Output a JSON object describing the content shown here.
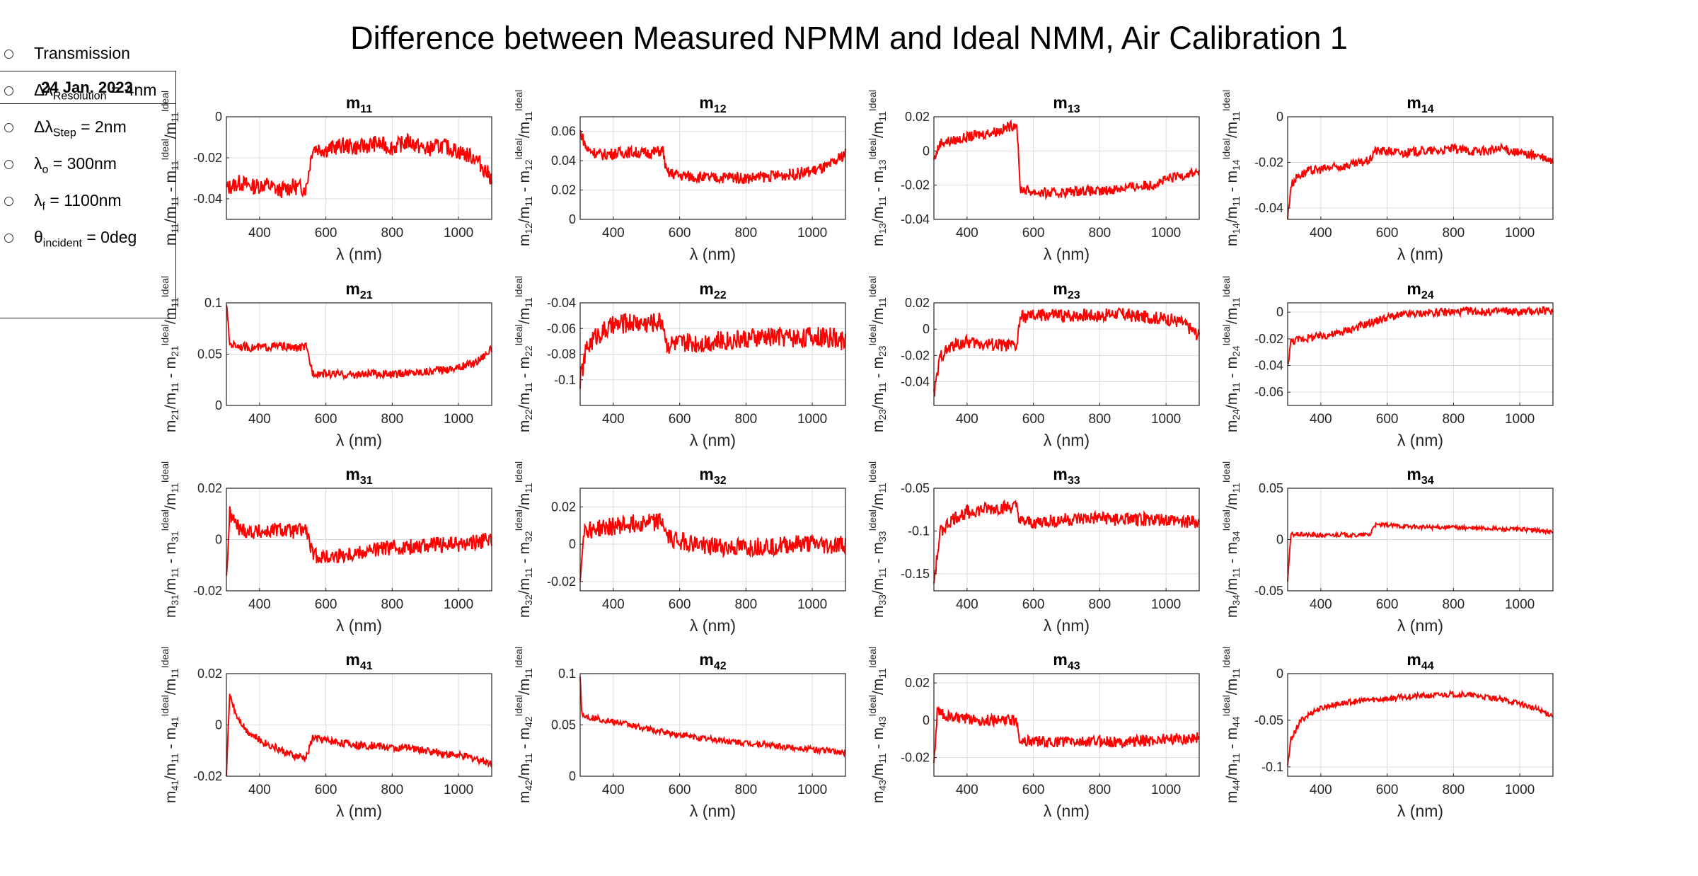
{
  "title": "Difference between Measured NPMM and Ideal NMM,  Air Calibration 1",
  "legend": {
    "date": "24 Jan. 2023",
    "items": [
      {
        "pre": "Transmission",
        "sub": "",
        "post": ""
      },
      {
        "pre": "Δλ",
        "sub": "Resolution",
        "post": " = 4nm"
      },
      {
        "pre": "Δλ",
        "sub": "Step",
        "post": " = 2nm"
      },
      {
        "pre": "λ",
        "sub": "o",
        "post": " = 300nm"
      },
      {
        "pre": "λ",
        "sub": "f",
        "post": " = 1100nm"
      },
      {
        "pre": "θ",
        "sub": "incident",
        "post": " = 0deg"
      }
    ]
  },
  "colors": {
    "line": "#ff0000",
    "grid": "#dcdcdc",
    "axis": "#262626"
  },
  "chart_data": [
    {
      "id": "11",
      "type": "line",
      "title": "m11",
      "xlabel": "λ (nm)",
      "ylabel": "m11/m11 - m11 Ideal/m11 Ideal",
      "xlim": [
        300,
        1100
      ],
      "ylim": [
        -0.05,
        0
      ],
      "yticks": [
        0,
        -0.02,
        -0.04
      ],
      "xticks": [
        400,
        600,
        800,
        1000
      ],
      "x": [
        300,
        340,
        380,
        420,
        460,
        500,
        540,
        560,
        600,
        650,
        700,
        750,
        800,
        850,
        900,
        950,
        1000,
        1050,
        1100
      ],
      "y": [
        -0.035,
        -0.032,
        -0.034,
        -0.033,
        -0.036,
        -0.034,
        -0.035,
        -0.015,
        -0.016,
        -0.014,
        -0.015,
        -0.013,
        -0.015,
        -0.012,
        -0.016,
        -0.014,
        -0.017,
        -0.02,
        -0.03
      ],
      "noise": 0.004
    },
    {
      "id": "12",
      "type": "line",
      "title": "m12",
      "xlabel": "λ (nm)",
      "ylabel": "m12/m11 - m12 Ideal/m11 Ideal",
      "xlim": [
        300,
        1100
      ],
      "ylim": [
        0,
        0.07
      ],
      "yticks": [
        0,
        0.02,
        0.04,
        0.06
      ],
      "xticks": [
        400,
        600,
        800,
        1000
      ],
      "x": [
        300,
        320,
        360,
        400,
        450,
        500,
        550,
        560,
        600,
        650,
        700,
        750,
        800,
        850,
        900,
        950,
        1000,
        1050,
        1100
      ],
      "y": [
        0.06,
        0.048,
        0.044,
        0.045,
        0.046,
        0.045,
        0.047,
        0.032,
        0.03,
        0.029,
        0.028,
        0.029,
        0.028,
        0.029,
        0.03,
        0.031,
        0.033,
        0.036,
        0.045
      ],
      "noise": 0.004
    },
    {
      "id": "13",
      "type": "line",
      "title": "m13",
      "xlabel": "λ (nm)",
      "ylabel": "m13/m11 - m13 Ideal/m11 Ideal",
      "xlim": [
        300,
        1100
      ],
      "ylim": [
        -0.04,
        0.02
      ],
      "yticks": [
        0.02,
        0,
        -0.02,
        -0.04
      ],
      "xticks": [
        400,
        600,
        800,
        1000
      ],
      "x": [
        300,
        320,
        360,
        400,
        450,
        500,
        550,
        560,
        600,
        650,
        700,
        750,
        800,
        850,
        900,
        950,
        1000,
        1050,
        1100
      ],
      "y": [
        -0.005,
        0.005,
        0.006,
        0.008,
        0.01,
        0.012,
        0.016,
        -0.022,
        -0.024,
        -0.025,
        -0.024,
        -0.023,
        -0.024,
        -0.022,
        -0.021,
        -0.02,
        -0.017,
        -0.014,
        -0.012
      ],
      "noise": 0.003
    },
    {
      "id": "14",
      "type": "line",
      "title": "m14",
      "xlabel": "λ (nm)",
      "ylabel": "m14/m11 - m14 Ideal/m11 Ideal",
      "xlim": [
        300,
        1100
      ],
      "ylim": [
        -0.045,
        0
      ],
      "yticks": [
        0,
        -0.02,
        -0.04
      ],
      "xticks": [
        400,
        600,
        800,
        1000
      ],
      "x": [
        300,
        310,
        330,
        360,
        400,
        450,
        500,
        550,
        560,
        600,
        650,
        700,
        750,
        800,
        850,
        900,
        950,
        1000,
        1050,
        1100
      ],
      "y": [
        -0.045,
        -0.03,
        -0.026,
        -0.024,
        -0.023,
        -0.022,
        -0.021,
        -0.019,
        -0.015,
        -0.015,
        -0.016,
        -0.015,
        -0.015,
        -0.014,
        -0.015,
        -0.015,
        -0.014,
        -0.016,
        -0.017,
        -0.02
      ],
      "noise": 0.002
    },
    {
      "id": "21",
      "type": "line",
      "title": "m21",
      "xlabel": "λ (nm)",
      "ylabel": "m21/m11 - m21 Ideal/m11 Ideal",
      "xlim": [
        300,
        1100
      ],
      "ylim": [
        0,
        0.1
      ],
      "yticks": [
        0,
        0.05,
        0.1
      ],
      "xticks": [
        400,
        600,
        800,
        1000
      ],
      "x": [
        300,
        310,
        340,
        380,
        420,
        460,
        500,
        540,
        560,
        600,
        650,
        700,
        750,
        800,
        850,
        900,
        950,
        1000,
        1050,
        1100
      ],
      "y": [
        0.1,
        0.06,
        0.058,
        0.056,
        0.057,
        0.058,
        0.056,
        0.057,
        0.032,
        0.031,
        0.03,
        0.03,
        0.031,
        0.03,
        0.032,
        0.033,
        0.035,
        0.037,
        0.042,
        0.055
      ],
      "noise": 0.004
    },
    {
      "id": "22",
      "type": "line",
      "title": "m22",
      "xlabel": "λ (nm)",
      "ylabel": "m22/m11 - m22 Ideal/m11 Ideal",
      "xlim": [
        300,
        1100
      ],
      "ylim": [
        -0.12,
        -0.04
      ],
      "yticks": [
        -0.04,
        -0.06,
        -0.08,
        -0.1
      ],
      "xticks": [
        400,
        600,
        800,
        1000
      ],
      "x": [
        300,
        320,
        350,
        400,
        450,
        500,
        550,
        560,
        600,
        650,
        700,
        750,
        800,
        850,
        900,
        950,
        1000,
        1050,
        1100
      ],
      "y": [
        -0.1,
        -0.075,
        -0.065,
        -0.058,
        -0.055,
        -0.056,
        -0.054,
        -0.072,
        -0.072,
        -0.071,
        -0.07,
        -0.069,
        -0.068,
        -0.067,
        -0.066,
        -0.067,
        -0.066,
        -0.067,
        -0.07
      ],
      "noise": 0.008
    },
    {
      "id": "23",
      "type": "line",
      "title": "m23",
      "xlabel": "λ (nm)",
      "ylabel": "m23/m11 - m23 Ideal/m11 Ideal",
      "xlim": [
        300,
        1100
      ],
      "ylim": [
        -0.058,
        0.02
      ],
      "yticks": [
        0.02,
        0,
        -0.02,
        -0.04
      ],
      "xticks": [
        400,
        600,
        800,
        1000
      ],
      "x": [
        300,
        320,
        360,
        400,
        450,
        500,
        550,
        560,
        600,
        650,
        700,
        750,
        800,
        850,
        900,
        950,
        1000,
        1050,
        1100
      ],
      "y": [
        -0.05,
        -0.02,
        -0.012,
        -0.01,
        -0.011,
        -0.012,
        -0.013,
        0.009,
        0.01,
        0.011,
        0.01,
        0.011,
        0.01,
        0.012,
        0.01,
        0.009,
        0.008,
        0.005,
        -0.005
      ],
      "noise": 0.005
    },
    {
      "id": "24",
      "type": "line",
      "title": "m24",
      "xlabel": "λ (nm)",
      "ylabel": "m24/m11 - m24 Ideal/m11 Ideal",
      "xlim": [
        300,
        1100
      ],
      "ylim": [
        -0.07,
        0.007
      ],
      "yticks": [
        0,
        -0.02,
        -0.04,
        -0.06
      ],
      "xticks": [
        400,
        600,
        800,
        1000
      ],
      "x": [
        300,
        310,
        340,
        400,
        450,
        500,
        550,
        600,
        650,
        700,
        750,
        800,
        850,
        900,
        950,
        1000,
        1050,
        1100
      ],
      "y": [
        -0.04,
        -0.022,
        -0.02,
        -0.018,
        -0.016,
        -0.012,
        -0.008,
        -0.004,
        -0.002,
        -0.001,
        0,
        0,
        0.001,
        0,
        0.001,
        0,
        0.001,
        0.001
      ],
      "noise": 0.003
    },
    {
      "id": "31",
      "type": "line",
      "title": "m31",
      "xlabel": "λ (nm)",
      "ylabel": "m31/m11 - m31 Ideal/m11 Ideal",
      "xlim": [
        300,
        1100
      ],
      "ylim": [
        -0.02,
        0.02
      ],
      "yticks": [
        0.02,
        0,
        -0.02
      ],
      "xticks": [
        400,
        600,
        800,
        1000
      ],
      "x": [
        300,
        310,
        340,
        380,
        420,
        460,
        500,
        540,
        560,
        600,
        650,
        700,
        750,
        800,
        850,
        900,
        950,
        1000,
        1050,
        1100
      ],
      "y": [
        -0.015,
        0.01,
        0.004,
        0.003,
        0.003,
        0.004,
        0.003,
        0.004,
        -0.006,
        -0.007,
        -0.006,
        -0.005,
        -0.004,
        -0.003,
        -0.003,
        -0.002,
        -0.002,
        -0.002,
        -0.001,
        0
      ],
      "noise": 0.003
    },
    {
      "id": "32",
      "type": "line",
      "title": "m32",
      "xlabel": "λ (nm)",
      "ylabel": "m32/m11 - m32 Ideal/m11 Ideal",
      "xlim": [
        300,
        1100
      ],
      "ylim": [
        -0.025,
        0.03
      ],
      "yticks": [
        0.02,
        0,
        -0.02
      ],
      "xticks": [
        400,
        600,
        800,
        1000
      ],
      "x": [
        300,
        310,
        340,
        380,
        420,
        460,
        500,
        550,
        560,
        600,
        650,
        700,
        750,
        800,
        850,
        900,
        950,
        1000,
        1050,
        1100
      ],
      "y": [
        -0.02,
        0.008,
        0.008,
        0.009,
        0.01,
        0.011,
        0.012,
        0.012,
        0.004,
        0.002,
        0,
        -0.001,
        -0.002,
        -0.002,
        -0.001,
        -0.001,
        0,
        0,
        -0.001,
        0
      ],
      "noise": 0.005
    },
    {
      "id": "33",
      "type": "line",
      "title": "m33",
      "xlabel": "λ (nm)",
      "ylabel": "m33/m11 - m33 Ideal/m11 Ideal",
      "xlim": [
        300,
        1100
      ],
      "ylim": [
        -0.17,
        -0.05
      ],
      "yticks": [
        -0.05,
        -0.1,
        -0.15
      ],
      "xticks": [
        400,
        600,
        800,
        1000
      ],
      "x": [
        300,
        320,
        360,
        400,
        450,
        500,
        550,
        560,
        600,
        650,
        700,
        750,
        800,
        850,
        900,
        950,
        1000,
        1050,
        1100
      ],
      "y": [
        -0.16,
        -0.1,
        -0.085,
        -0.078,
        -0.075,
        -0.073,
        -0.072,
        -0.09,
        -0.09,
        -0.088,
        -0.087,
        -0.086,
        -0.085,
        -0.086,
        -0.087,
        -0.086,
        -0.087,
        -0.088,
        -0.09
      ],
      "noise": 0.008
    },
    {
      "id": "34",
      "type": "line",
      "title": "m34",
      "xlabel": "λ (nm)",
      "ylabel": "m34/m11 - m34 Ideal/m11 Ideal",
      "xlim": [
        300,
        1100
      ],
      "ylim": [
        -0.05,
        0.05
      ],
      "yticks": [
        0.05,
        0,
        -0.05
      ],
      "xticks": [
        400,
        600,
        800,
        1000
      ],
      "x": [
        300,
        310,
        340,
        380,
        420,
        460,
        500,
        550,
        560,
        600,
        650,
        700,
        750,
        800,
        850,
        900,
        950,
        1000,
        1050,
        1100
      ],
      "y": [
        -0.04,
        0.005,
        0.005,
        0.004,
        0.004,
        0.005,
        0.004,
        0.005,
        0.014,
        0.014,
        0.013,
        0.012,
        0.012,
        0.012,
        0.011,
        0.011,
        0.01,
        0.01,
        0.009,
        0.007
      ],
      "noise": 0.002
    },
    {
      "id": "41",
      "type": "line",
      "title": "m41",
      "xlabel": "λ (nm)",
      "ylabel": "m41/m11 - m41 Ideal/m11 Ideal",
      "xlim": [
        300,
        1100
      ],
      "ylim": [
        -0.02,
        0.02
      ],
      "yticks": [
        0.02,
        0,
        -0.02
      ],
      "xticks": [
        400,
        600,
        800,
        1000
      ],
      "x": [
        300,
        310,
        330,
        360,
        400,
        450,
        500,
        540,
        560,
        600,
        650,
        700,
        750,
        800,
        850,
        900,
        950,
        1000,
        1050,
        1100
      ],
      "y": [
        -0.02,
        0.012,
        0.004,
        -0.002,
        -0.006,
        -0.009,
        -0.012,
        -0.013,
        -0.005,
        -0.006,
        -0.007,
        -0.008,
        -0.008,
        -0.009,
        -0.009,
        -0.01,
        -0.011,
        -0.012,
        -0.013,
        -0.015
      ],
      "noise": 0.0015
    },
    {
      "id": "42",
      "type": "line",
      "title": "m42",
      "xlabel": "λ (nm)",
      "ylabel": "m42/m11 - m42 Ideal/m11 Ideal",
      "xlim": [
        300,
        1100
      ],
      "ylim": [
        0,
        0.1
      ],
      "yticks": [
        0,
        0.05,
        0.1
      ],
      "xticks": [
        400,
        600,
        800,
        1000
      ],
      "x": [
        300,
        305,
        320,
        350,
        400,
        450,
        500,
        550,
        600,
        650,
        700,
        750,
        800,
        850,
        900,
        950,
        1000,
        1050,
        1100
      ],
      "y": [
        0.1,
        0.06,
        0.058,
        0.056,
        0.053,
        0.05,
        0.046,
        0.043,
        0.04,
        0.038,
        0.036,
        0.034,
        0.032,
        0.031,
        0.029,
        0.028,
        0.026,
        0.025,
        0.023
      ],
      "noise": 0.003
    },
    {
      "id": "43",
      "type": "line",
      "title": "m43",
      "xlabel": "λ (nm)",
      "ylabel": "m43/m11 - m43 Ideal/m11 Ideal",
      "xlim": [
        300,
        1100
      ],
      "ylim": [
        -0.03,
        0.025
      ],
      "yticks": [
        0.02,
        0,
        -0.02
      ],
      "xticks": [
        400,
        600,
        800,
        1000
      ],
      "x": [
        300,
        310,
        340,
        380,
        420,
        460,
        500,
        550,
        560,
        600,
        650,
        700,
        750,
        800,
        850,
        900,
        950,
        1000,
        1050,
        1100
      ],
      "y": [
        -0.025,
        0.005,
        0.002,
        0.001,
        0,
        0,
        0,
        0,
        -0.011,
        -0.011,
        -0.012,
        -0.011,
        -0.012,
        -0.011,
        -0.012,
        -0.011,
        -0.011,
        -0.01,
        -0.01,
        -0.009
      ],
      "noise": 0.003
    },
    {
      "id": "44",
      "type": "line",
      "title": "m44",
      "xlabel": "λ (nm)",
      "ylabel": "m44/m11 - m44 Ideal/m11 Ideal",
      "xlim": [
        300,
        1100
      ],
      "ylim": [
        -0.11,
        0
      ],
      "yticks": [
        0,
        -0.05,
        -0.1
      ],
      "xticks": [
        400,
        600,
        800,
        1000
      ],
      "x": [
        300,
        310,
        340,
        380,
        420,
        460,
        500,
        550,
        600,
        650,
        700,
        750,
        800,
        850,
        900,
        950,
        1000,
        1050,
        1100
      ],
      "y": [
        -0.1,
        -0.07,
        -0.05,
        -0.04,
        -0.035,
        -0.032,
        -0.03,
        -0.028,
        -0.027,
        -0.025,
        -0.024,
        -0.023,
        -0.022,
        -0.023,
        -0.025,
        -0.028,
        -0.032,
        -0.038,
        -0.045
      ],
      "noise": 0.003
    }
  ]
}
